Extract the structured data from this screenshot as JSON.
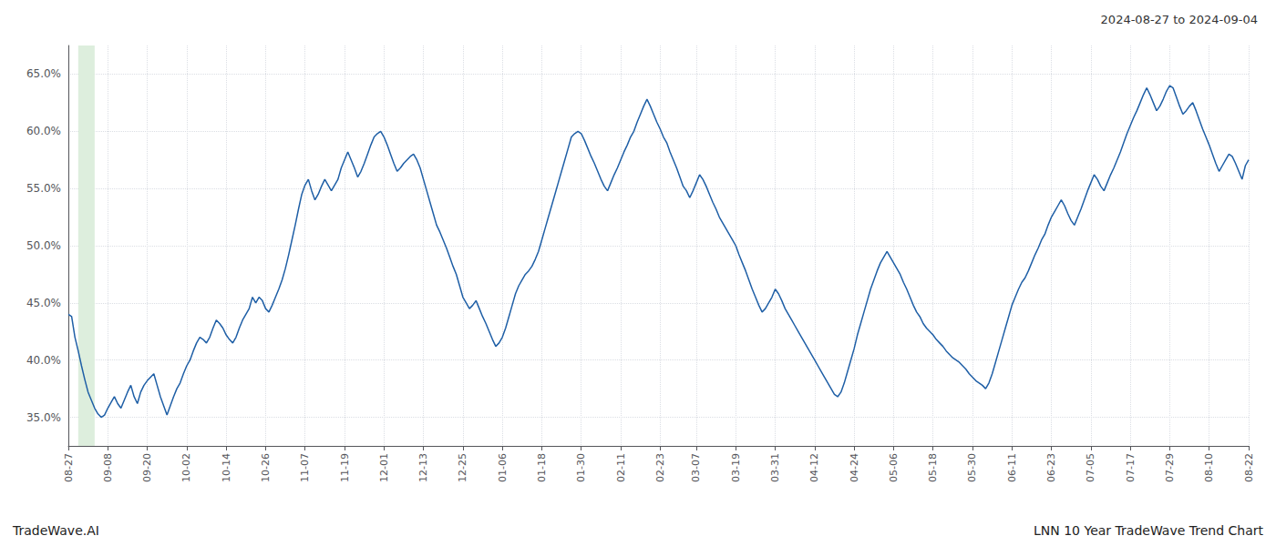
{
  "chart_data": {
    "type": "line",
    "title": "2024-08-27 to 2024-09-04",
    "annotations": [
      "TradeWave.AI",
      "LNN 10 Year TradeWave Trend Chart"
    ],
    "color": "#1f5fa6",
    "grid": true,
    "shaded_region": {
      "from": 2.88,
      "to": 7.92,
      "color": "#ddeedd"
    },
    "ylim": [
      0.325,
      0.675
    ],
    "yticks": [
      {
        "value": 0.35,
        "label": "35.0%"
      },
      {
        "value": 0.4,
        "label": "40.0%"
      },
      {
        "value": 0.45,
        "label": "45.0%"
      },
      {
        "value": 0.5,
        "label": "50.0%"
      },
      {
        "value": 0.55,
        "label": "55.0%"
      },
      {
        "value": 0.6,
        "label": "60.0%"
      },
      {
        "value": 0.65,
        "label": "65.0%"
      }
    ],
    "categories": [
      "08-27",
      null,
      null,
      null,
      null,
      null,
      null,
      null,
      null,
      null,
      null,
      null,
      "09-08",
      null,
      null,
      null,
      null,
      null,
      null,
      null,
      null,
      null,
      null,
      null,
      "09-20",
      null,
      null,
      null,
      null,
      null,
      null,
      null,
      null,
      null,
      null,
      null,
      "10-02",
      null,
      null,
      null,
      null,
      null,
      null,
      null,
      null,
      null,
      null,
      null,
      "10-14",
      null,
      null,
      null,
      null,
      null,
      null,
      null,
      null,
      null,
      null,
      null,
      "10-26",
      null,
      null,
      null,
      null,
      null,
      null,
      null,
      null,
      null,
      null,
      null,
      "11-07",
      null,
      null,
      null,
      null,
      null,
      null,
      null,
      null,
      null,
      null,
      null,
      "11-19",
      null,
      null,
      null,
      null,
      null,
      null,
      null,
      null,
      null,
      null,
      null,
      "12-01",
      null,
      null,
      null,
      null,
      null,
      null,
      null,
      null,
      null,
      null,
      null,
      "12-13",
      null,
      null,
      null,
      null,
      null,
      null,
      null,
      null,
      null,
      null,
      null,
      "12-25",
      null,
      null,
      null,
      null,
      null,
      null,
      null,
      null,
      null,
      null,
      null,
      "01-06",
      null,
      null,
      null,
      null,
      null,
      null,
      null,
      null,
      null,
      null,
      null,
      "01-18",
      null,
      null,
      null,
      null,
      null,
      null,
      null,
      null,
      null,
      null,
      null,
      "01-30",
      null,
      null,
      null,
      null,
      null,
      null,
      null,
      null,
      null,
      null,
      null,
      "02-11",
      null,
      null,
      null,
      null,
      null,
      null,
      null,
      null,
      null,
      null,
      null,
      "02-23",
      null,
      null,
      null,
      null,
      null,
      null,
      null,
      null,
      null,
      null,
      "03-07",
      null,
      null,
      null,
      null,
      null,
      null,
      null,
      null,
      null,
      null,
      null,
      "03-19",
      null,
      null,
      null,
      null,
      null,
      null,
      null,
      null,
      null,
      null,
      null,
      "03-31",
      null,
      null,
      null,
      null,
      null,
      null,
      null,
      null,
      null,
      null,
      null,
      "04-12",
      null,
      null,
      null,
      null,
      null,
      null,
      null,
      null,
      null,
      null,
      null,
      "04-24",
      null,
      null,
      null,
      null,
      null,
      null,
      null,
      null,
      null,
      null,
      null,
      "05-06",
      null,
      null,
      null,
      null,
      null,
      null,
      null,
      null,
      null,
      null,
      null,
      "05-18",
      null,
      null,
      null,
      null,
      null,
      null,
      null,
      null,
      null,
      null,
      null,
      "05-30",
      null,
      null,
      null,
      null,
      null,
      null,
      null,
      null,
      null,
      null,
      null,
      "06-11",
      null,
      null,
      null,
      null,
      null,
      null,
      null,
      null,
      null,
      null,
      null,
      "06-23",
      null,
      null,
      null,
      null,
      null,
      null,
      null,
      null,
      null,
      null,
      null,
      "07-05",
      null,
      null,
      null,
      null,
      null,
      null,
      null,
      null,
      null,
      null,
      null,
      "07-17",
      null,
      null,
      null,
      null,
      null,
      null,
      null,
      null,
      null,
      null,
      null,
      "07-29",
      null,
      null,
      null,
      null,
      null,
      null,
      null,
      null,
      null,
      null,
      null,
      "08-10",
      null,
      null,
      null,
      null,
      null,
      null,
      null,
      null,
      null,
      null,
      null,
      "08-22"
    ],
    "values": [
      0.44,
      0.438,
      0.42,
      0.408,
      0.395,
      0.383,
      0.372,
      0.365,
      0.358,
      0.353,
      0.35,
      0.352,
      0.358,
      0.363,
      0.368,
      0.362,
      0.358,
      0.365,
      0.372,
      0.378,
      0.368,
      0.362,
      0.372,
      0.378,
      0.382,
      0.385,
      0.388,
      0.378,
      0.368,
      0.36,
      0.352,
      0.36,
      0.368,
      0.375,
      0.38,
      0.388,
      0.395,
      0.4,
      0.408,
      0.415,
      0.42,
      0.418,
      0.415,
      0.42,
      0.428,
      0.435,
      0.432,
      0.428,
      0.422,
      0.418,
      0.415,
      0.42,
      0.428,
      0.435,
      0.44,
      0.445,
      0.455,
      0.45,
      0.455,
      0.452,
      0.445,
      0.442,
      0.448,
      0.455,
      0.462,
      0.47,
      0.48,
      0.492,
      0.505,
      0.518,
      0.532,
      0.545,
      0.553,
      0.558,
      0.548,
      0.54,
      0.545,
      0.552,
      0.558,
      0.553,
      0.548,
      0.553,
      0.558,
      0.568,
      0.575,
      0.582,
      0.575,
      0.568,
      0.56,
      0.565,
      0.572,
      0.58,
      0.588,
      0.595,
      0.598,
      0.6,
      0.595,
      0.588,
      0.58,
      0.572,
      0.565,
      0.568,
      0.572,
      0.575,
      0.578,
      0.58,
      0.575,
      0.568,
      0.558,
      0.548,
      0.538,
      0.528,
      0.518,
      0.512,
      0.505,
      0.498,
      0.49,
      0.482,
      0.475,
      0.465,
      0.455,
      0.45,
      0.445,
      0.448,
      0.452,
      0.445,
      0.438,
      0.432,
      0.425,
      0.418,
      0.412,
      0.415,
      0.42,
      0.428,
      0.438,
      0.448,
      0.458,
      0.465,
      0.47,
      0.475,
      0.478,
      0.482,
      0.488,
      0.495,
      0.505,
      0.515,
      0.525,
      0.535,
      0.545,
      0.555,
      0.565,
      0.575,
      0.585,
      0.595,
      0.598,
      0.6,
      0.598,
      0.592,
      0.585,
      0.578,
      0.572,
      0.565,
      0.558,
      0.552,
      0.548,
      0.555,
      0.562,
      0.568,
      0.575,
      0.582,
      0.588,
      0.595,
      0.6,
      0.608,
      0.615,
      0.622,
      0.628,
      0.622,
      0.615,
      0.608,
      0.602,
      0.595,
      0.59,
      0.582,
      0.575,
      0.568,
      0.56,
      0.552,
      0.548,
      0.542,
      0.548,
      0.555,
      0.562,
      0.558,
      0.552,
      0.545,
      0.538,
      0.532,
      0.525,
      0.52,
      0.515,
      0.51,
      0.505,
      0.5,
      0.492,
      0.485,
      0.478,
      0.47,
      0.462,
      0.455,
      0.448,
      0.442,
      0.445,
      0.45,
      0.455,
      0.462,
      0.458,
      0.452,
      0.445,
      0.44,
      0.435,
      0.43,
      0.425,
      0.42,
      0.415,
      0.41,
      0.405,
      0.4,
      0.395,
      0.39,
      0.385,
      0.38,
      0.375,
      0.37,
      0.368,
      0.372,
      0.38,
      0.39,
      0.4,
      0.41,
      0.422,
      0.432,
      0.442,
      0.452,
      0.462,
      0.47,
      0.478,
      0.485,
      0.49,
      0.495,
      0.49,
      0.485,
      0.48,
      0.475,
      0.468,
      0.462,
      0.455,
      0.448,
      0.442,
      0.438,
      0.432,
      0.428,
      0.425,
      0.422,
      0.418,
      0.415,
      0.412,
      0.408,
      0.405,
      0.402,
      0.4,
      0.398,
      0.395,
      0.392,
      0.388,
      0.385,
      0.382,
      0.38,
      0.378,
      0.375,
      0.38,
      0.388,
      0.398,
      0.408,
      0.418,
      0.428,
      0.438,
      0.448,
      0.455,
      0.462,
      0.468,
      0.472,
      0.478,
      0.485,
      0.492,
      0.498,
      0.505,
      0.51,
      0.518,
      0.525,
      0.53,
      0.535,
      0.54,
      0.535,
      0.528,
      0.522,
      0.518,
      0.525,
      0.532,
      0.54,
      0.548,
      0.555,
      0.562,
      0.558,
      0.552,
      0.548,
      0.555,
      0.562,
      0.568,
      0.575,
      0.582,
      0.59,
      0.598,
      0.605,
      0.612,
      0.618,
      0.625,
      0.632,
      0.638,
      0.632,
      0.625,
      0.618,
      0.622,
      0.628,
      0.635,
      0.64,
      0.638,
      0.63,
      0.622,
      0.615,
      0.618,
      0.622,
      0.625,
      0.618,
      0.61,
      0.602,
      0.595,
      0.588,
      0.58,
      0.572,
      0.565,
      0.57,
      0.575,
      0.58,
      0.578,
      0.572,
      0.565,
      0.558,
      0.57,
      0.575
    ]
  }
}
